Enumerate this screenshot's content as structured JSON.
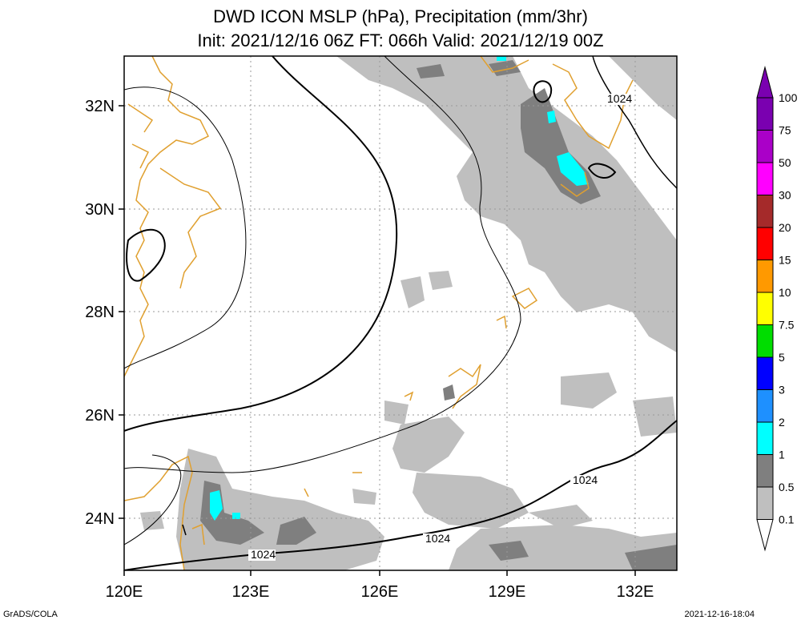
{
  "title_line1": "DWD ICON MSLP (hPa), Precipitation (mm/3hr)",
  "title_line2": "Init: 2021/12/16 06Z  FT: 066h  Valid: 2021/12/19 00Z",
  "lon_labels": [
    "120E",
    "123E",
    "126E",
    "129E",
    "132E"
  ],
  "lat_labels": [
    "32N",
    "30N",
    "28N",
    "26N",
    "24N"
  ],
  "isobar_labels": [
    "1024",
    "1024",
    "1024",
    "1024"
  ],
  "colorbar": {
    "labels": [
      "100",
      "75",
      "50",
      "30",
      "20",
      "15",
      "10",
      "7.5",
      "5",
      "3",
      "2",
      "1",
      "0.5",
      "0.1"
    ],
    "colors": [
      "#7a00b0",
      "#aa00c8",
      "#ff00ff",
      "#a52a2a",
      "#ff0000",
      "#ff9900",
      "#ffff00",
      "#00dd00",
      "#0000ff",
      "#1e90ff",
      "#00ffff",
      "#7f7f7f",
      "#bfbfbf"
    ]
  },
  "colors": {
    "precip_light": "#bfbfbf",
    "precip_mid": "#7f7f7f",
    "precip_cyan": "#00ffff",
    "coast": "#e0a030",
    "isobar": "#000000"
  },
  "footer_left": "GrADS/COLA",
  "footer_right": "2021-12-16-18:04"
}
